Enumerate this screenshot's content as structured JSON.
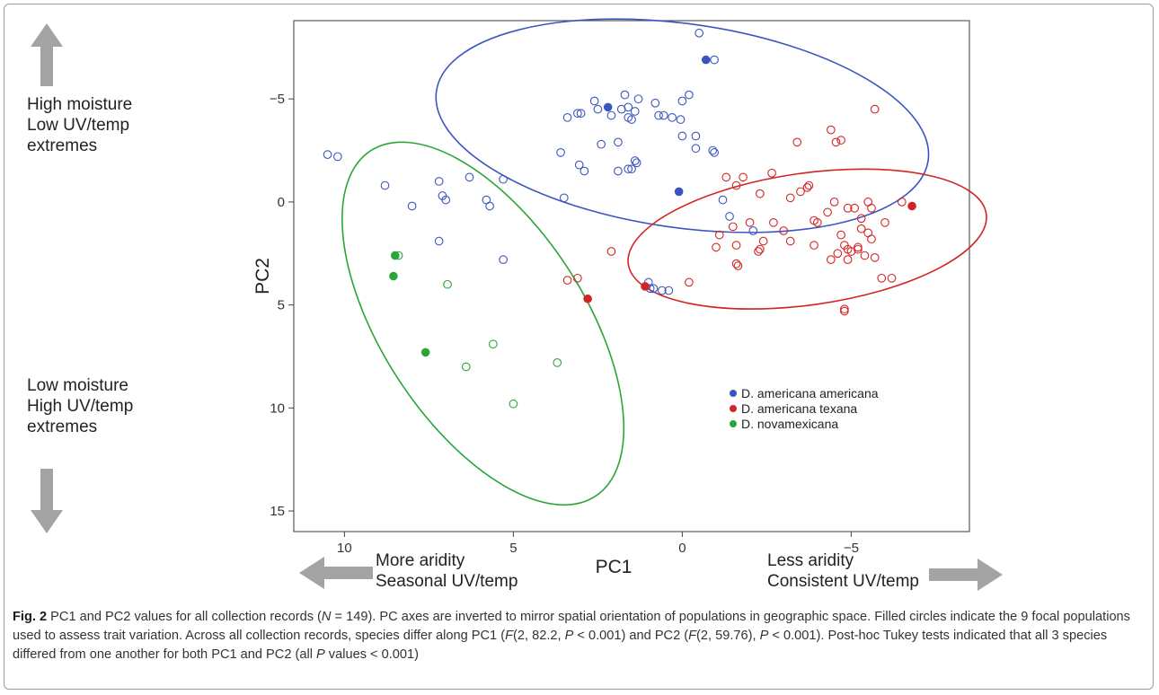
{
  "annotations": {
    "top_left": [
      "High moisture",
      "Low UV/temp",
      "extremes"
    ],
    "bottom_left": [
      "Low moisture",
      "High UV/temp",
      "extremes"
    ],
    "bottom_mid": [
      "More aridity",
      "Seasonal UV/temp"
    ],
    "bottom_right": [
      "Less aridity",
      "Consistent UV/temp"
    ]
  },
  "caption": {
    "label": "Fig. 2",
    "text_html": "PC1 and PC2 values for all collection records (<i>N</i> = 149). PC axes are inverted to mirror spatial orientation of populations in geographic space. Filled circles indicate the 9 focal populations used to assess trait variation. Across all collection records, species differ along PC1 (<i>F</i>(2, 82.2, <i>P</i> &lt; 0.001) and PC2 (<i>F</i>(2, 59.76), <i>P</i> &lt; 0.001). Post-hoc Tukey tests indicated that all 3 species differed from one another for both PC1 and PC2 (all <i>P</i> values &lt; 0.001)"
  },
  "colors": {
    "americana": "#3b55c0",
    "texana": "#d42323",
    "novamexicana": "#2ba53a",
    "arrow": "#a3a3a3",
    "panel_border": "#5a5a5a"
  },
  "chart_data": {
    "type": "scatter",
    "xlabel": "PC1",
    "ylabel": "PC2",
    "x_reversed": true,
    "y_reversed": true,
    "xlim": [
      11.5,
      -8.5
    ],
    "ylim": [
      -8.8,
      16.0
    ],
    "xticks": [
      10,
      5,
      0,
      -5
    ],
    "xtick_labels": [
      "10",
      "5",
      "0",
      "−5"
    ],
    "yticks": [
      -5,
      0,
      5,
      10,
      15
    ],
    "ytick_labels": [
      "−5",
      "0",
      "5",
      "10",
      "15"
    ],
    "grid": false,
    "legend_position": "bottom-right",
    "series": [
      {
        "name": "D. americana americana",
        "color": "#3b55c0",
        "ellipse": {
          "cx": 0.0,
          "cy": -3.7,
          "rx": 7.35,
          "ry": 4.95,
          "rotation_deg": 8
        },
        "filled": [
          [
            -0.7,
            -6.9
          ],
          [
            2.2,
            -4.6
          ],
          [
            0.1,
            -0.5
          ]
        ],
        "open": [
          [
            -0.5,
            -8.2
          ],
          [
            -0.95,
            -6.9
          ],
          [
            1.7,
            -5.2
          ],
          [
            -0.2,
            -5.2
          ],
          [
            2.6,
            -4.9
          ],
          [
            1.3,
            -5.0
          ],
          [
            0.0,
            -4.9
          ],
          [
            0.8,
            -4.8
          ],
          [
            1.6,
            -4.6
          ],
          [
            2.5,
            -4.5
          ],
          [
            1.8,
            -4.5
          ],
          [
            1.4,
            -4.4
          ],
          [
            0.7,
            -4.2
          ],
          [
            0.55,
            -4.2
          ],
          [
            3.0,
            -4.3
          ],
          [
            2.1,
            -4.2
          ],
          [
            0.3,
            -4.1
          ],
          [
            1.6,
            -4.1
          ],
          [
            1.5,
            -4.0
          ],
          [
            0.05,
            -4.0
          ],
          [
            3.4,
            -4.1
          ],
          [
            3.1,
            -4.3
          ],
          [
            -0.4,
            -3.2
          ],
          [
            0.0,
            -3.2
          ],
          [
            -0.4,
            -2.6
          ],
          [
            1.9,
            -2.9
          ],
          [
            3.6,
            -2.4
          ],
          [
            2.4,
            -2.8
          ],
          [
            -0.9,
            -2.5
          ],
          [
            -0.95,
            -2.4
          ],
          [
            1.4,
            -2.0
          ],
          [
            1.35,
            -1.9
          ],
          [
            3.05,
            -1.8
          ],
          [
            1.6,
            -1.6
          ],
          [
            1.5,
            -1.6
          ],
          [
            1.9,
            -1.5
          ],
          [
            2.9,
            -1.5
          ],
          [
            5.3,
            -1.1
          ],
          [
            6.3,
            -1.2
          ],
          [
            7.2,
            -1.0
          ],
          [
            7.1,
            -0.3
          ],
          [
            7.0,
            -0.1
          ],
          [
            5.8,
            -0.1
          ],
          [
            5.7,
            0.2
          ],
          [
            3.5,
            -0.2
          ],
          [
            -1.2,
            -0.1
          ],
          [
            -1.4,
            0.7
          ],
          [
            8.0,
            0.2
          ],
          [
            8.8,
            -0.8
          ],
          [
            10.2,
            -2.2
          ],
          [
            10.5,
            -2.3
          ],
          [
            7.2,
            1.9
          ],
          [
            5.3,
            2.8
          ],
          [
            -2.1,
            1.4
          ],
          [
            0.4,
            4.3
          ],
          [
            0.6,
            4.3
          ],
          [
            0.85,
            4.2
          ],
          [
            1.0,
            3.9
          ],
          [
            0.95,
            4.2
          ]
        ]
      },
      {
        "name": "D. americana texana",
        "color": "#d42323",
        "ellipse": {
          "cx": -3.7,
          "cy": 1.8,
          "rx": 5.35,
          "ry": 3.2,
          "rotation_deg": -8
        },
        "filled": [
          [
            -6.8,
            0.2
          ],
          [
            2.8,
            4.7
          ],
          [
            1.1,
            4.1
          ]
        ],
        "open": [
          [
            -5.7,
            -4.5
          ],
          [
            -4.4,
            -3.5
          ],
          [
            -4.55,
            -2.9
          ],
          [
            -3.4,
            -2.9
          ],
          [
            -4.7,
            -3.0
          ],
          [
            -2.65,
            -1.4
          ],
          [
            -1.8,
            -1.2
          ],
          [
            -1.3,
            -1.2
          ],
          [
            -3.7,
            -0.7
          ],
          [
            -3.75,
            -0.8
          ],
          [
            -1.6,
            -0.8
          ],
          [
            -3.5,
            -0.5
          ],
          [
            -3.2,
            -0.2
          ],
          [
            -2.3,
            -0.4
          ],
          [
            -4.5,
            0.0
          ],
          [
            -6.5,
            0.0
          ],
          [
            -5.5,
            0.0
          ],
          [
            -5.6,
            0.3
          ],
          [
            -5.1,
            0.3
          ],
          [
            -4.9,
            0.3
          ],
          [
            -4.3,
            0.5
          ],
          [
            -3.9,
            0.9
          ],
          [
            -4.0,
            1.0
          ],
          [
            -5.3,
            0.8
          ],
          [
            -6.0,
            1.0
          ],
          [
            -2.7,
            1.0
          ],
          [
            -1.5,
            1.2
          ],
          [
            -2.0,
            1.0
          ],
          [
            -3.0,
            1.4
          ],
          [
            -1.1,
            1.6
          ],
          [
            -5.3,
            1.3
          ],
          [
            -5.5,
            1.5
          ],
          [
            -4.7,
            1.6
          ],
          [
            -5.6,
            1.8
          ],
          [
            -3.2,
            1.9
          ],
          [
            -2.4,
            1.9
          ],
          [
            -3.9,
            2.1
          ],
          [
            -4.8,
            2.1
          ],
          [
            -4.9,
            2.3
          ],
          [
            -5.2,
            2.3
          ],
          [
            -5.0,
            2.4
          ],
          [
            -1.6,
            2.1
          ],
          [
            -1.0,
            2.2
          ],
          [
            -2.3,
            2.3
          ],
          [
            -2.25,
            2.4
          ],
          [
            -4.6,
            2.5
          ],
          [
            -5.4,
            2.6
          ],
          [
            -5.7,
            2.7
          ],
          [
            -4.9,
            2.8
          ],
          [
            -4.4,
            2.8
          ],
          [
            -5.2,
            2.2
          ],
          [
            -1.6,
            3.0
          ],
          [
            -1.65,
            3.1
          ],
          [
            -5.9,
            3.7
          ],
          [
            -6.2,
            3.7
          ],
          [
            -4.8,
            5.2
          ],
          [
            -4.8,
            5.3
          ],
          [
            2.1,
            2.4
          ],
          [
            3.1,
            3.7
          ],
          [
            3.4,
            3.8
          ],
          [
            -0.2,
            3.9
          ]
        ]
      },
      {
        "name": "D. novamexicana",
        "color": "#2ba53a",
        "ellipse": {
          "cx": 5.9,
          "cy": 5.9,
          "rx": 3.0,
          "ry": 10.0,
          "rotation_deg": -33
        },
        "filled": [
          [
            8.5,
            2.6
          ],
          [
            8.55,
            3.6
          ],
          [
            7.6,
            7.3
          ]
        ],
        "open": [
          [
            8.4,
            2.6
          ],
          [
            6.95,
            4.0
          ],
          [
            5.6,
            6.9
          ],
          [
            6.4,
            8.0
          ],
          [
            3.7,
            7.8
          ],
          [
            5.0,
            9.8
          ]
        ]
      }
    ]
  }
}
